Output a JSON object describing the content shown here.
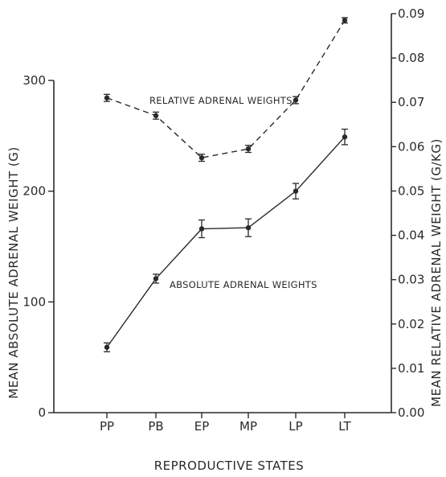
{
  "chart_data": {
    "type": "line",
    "xlabel": "REPRODUCTIVE STATES",
    "ylabel_left": "MEAN ABSOLUTE ADRENAL WEIGHT (G)",
    "ylabel_right": "MEAN RELATIVE ADRENAL WEIGHT (G/KG)",
    "categories": [
      "PP",
      "PB",
      "EP",
      "MP",
      "LP",
      "LT"
    ],
    "y_left": {
      "lim": [
        0,
        300
      ],
      "ticks": [
        0,
        100,
        200,
        300
      ],
      "tick_labels": [
        "0",
        "100",
        "200",
        "300"
      ]
    },
    "y_right": {
      "lim": [
        0.0,
        0.09
      ],
      "ticks": [
        0.0,
        0.01,
        0.02,
        0.03,
        0.04,
        0.05,
        0.06,
        0.07,
        0.08,
        0.09
      ],
      "tick_labels": [
        "0.00",
        "0.01",
        "0.02",
        "0.03",
        "0.04",
        "0.05",
        "0.06",
        "0.07",
        "0.08",
        "0.09"
      ]
    },
    "series": [
      {
        "name": "ABSOLUTE ADRENAL WEIGHTS",
        "axis": "left",
        "style": "solid",
        "values": [
          59,
          121,
          166,
          167,
          200,
          249
        ],
        "error": [
          4,
          4,
          8,
          8,
          7,
          7
        ]
      },
      {
        "name": "RELATIVE ADRENAL WEIGHTS",
        "axis": "right",
        "style": "dashed",
        "values": [
          0.071,
          0.067,
          0.0575,
          0.0595,
          0.0705,
          0.0885
        ],
        "error": [
          0.0008,
          0.0008,
          0.0008,
          0.0008,
          0.0008,
          0.0006
        ]
      }
    ],
    "grid": false,
    "colors": {
      "ink": "#2a2a2a",
      "background": "#ffffff"
    }
  }
}
